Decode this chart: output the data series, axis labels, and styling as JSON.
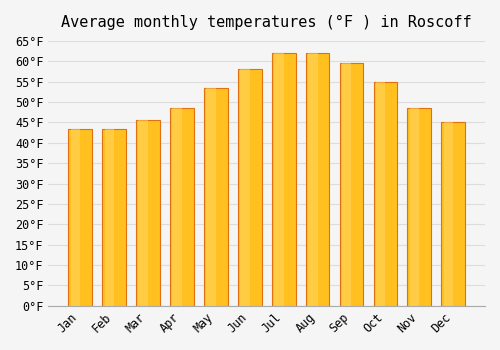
{
  "title": "Average monthly temperatures (°F ) in Roscoff",
  "months": [
    "Jan",
    "Feb",
    "Mar",
    "Apr",
    "May",
    "Jun",
    "Jul",
    "Aug",
    "Sep",
    "Oct",
    "Nov",
    "Dec"
  ],
  "values": [
    43.5,
    43.5,
    45.5,
    48.5,
    53.5,
    58,
    62,
    62,
    59.5,
    55,
    48.5,
    45
  ],
  "bar_color": "#FFC020",
  "bar_edge_color": "#E07010",
  "ylim": [
    0,
    65
  ],
  "yticks": [
    0,
    5,
    10,
    15,
    20,
    25,
    30,
    35,
    40,
    45,
    50,
    55,
    60,
    65
  ],
  "ylabel_suffix": "°F",
  "grid_color": "#dddddd",
  "background_color": "#f5f5f5",
  "title_fontsize": 11,
  "tick_fontsize": 8.5,
  "font_family": "monospace"
}
